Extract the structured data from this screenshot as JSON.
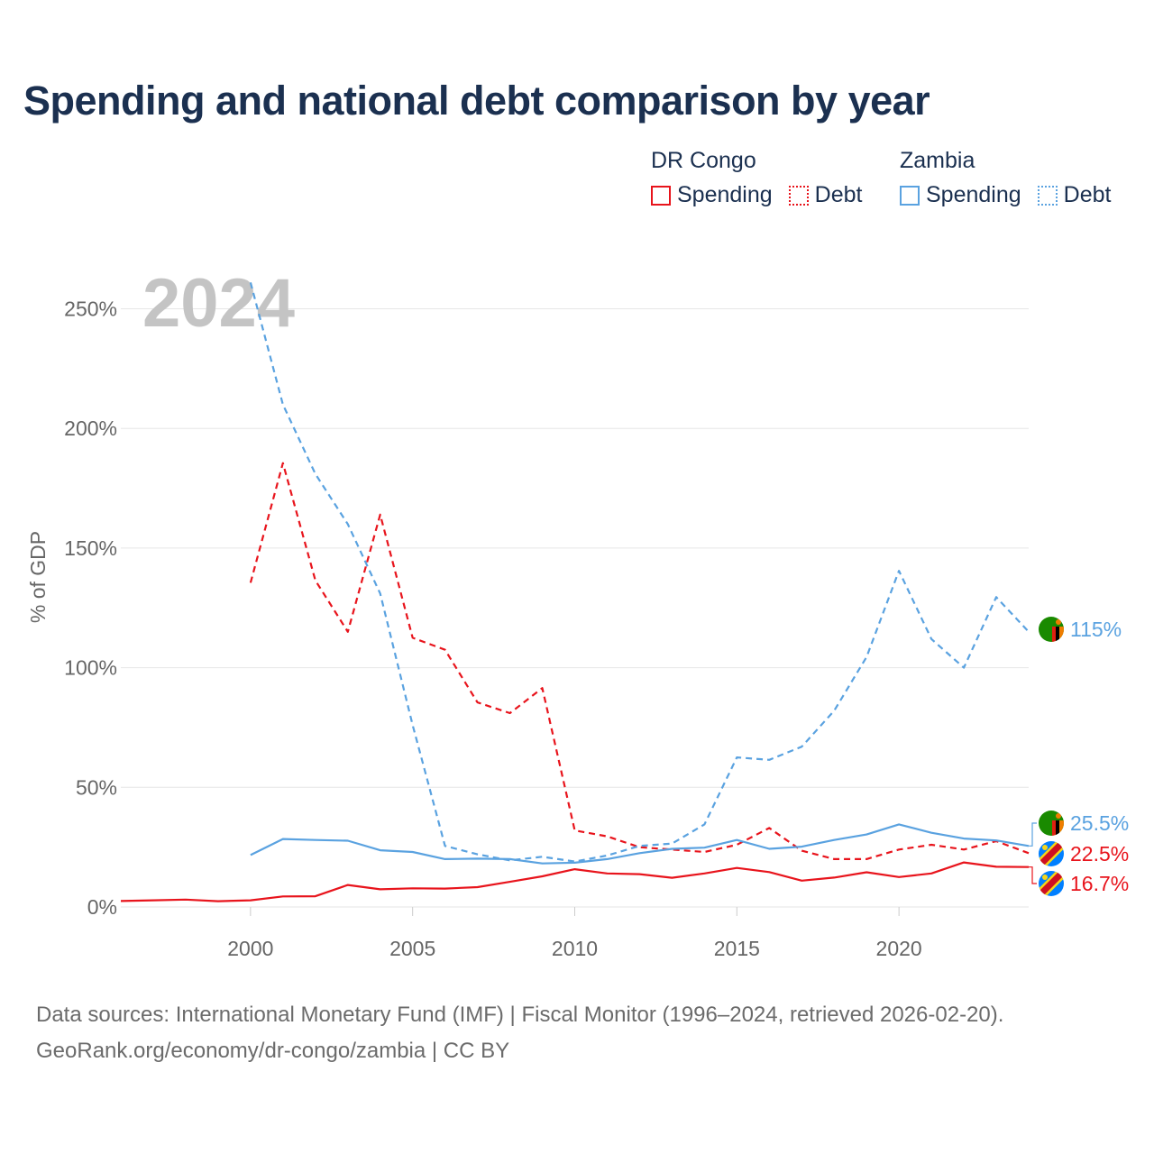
{
  "title": "Spending and national debt comparison by year",
  "legend": {
    "groups": [
      {
        "country": "DR Congo",
        "items": [
          {
            "label": "Spending"
          },
          {
            "label": "Debt"
          }
        ]
      },
      {
        "country": "Zambia",
        "items": [
          {
            "label": "Spending"
          },
          {
            "label": "Debt"
          }
        ]
      }
    ]
  },
  "colors": {
    "congo": "#e8141c",
    "zambia": "#5aa2e0",
    "grid": "#e6e6e6",
    "axis_text": "#666666",
    "year_watermark": "#c4c4c4"
  },
  "year_label": "2024",
  "end_labels": [
    {
      "series": "zambia_debt",
      "text": "115%",
      "flag": "zambia-flag-icon"
    },
    {
      "series": "zambia_spending",
      "text": "25.5%",
      "flag": "zambia-flag-icon"
    },
    {
      "series": "congo_debt",
      "text": "22.5%",
      "flag": "dr-congo-flag-icon"
    },
    {
      "series": "congo_spending",
      "text": "16.7%",
      "flag": "dr-congo-flag-icon"
    }
  ],
  "footer": {
    "line1": "Data sources: International Monetary Fund (IMF) | Fiscal Monitor (1996–2024, retrieved 2026-02-20).",
    "line2": "GeoRank.org/economy/dr-congo/zambia | CC BY"
  },
  "chart_data": {
    "type": "line",
    "title": "Spending and national debt comparison by year",
    "xlabel": "",
    "ylabel": "% of GDP",
    "xlim": [
      1996,
      2024
    ],
    "ylim": [
      0,
      260
    ],
    "x_ticks": [
      2000,
      2005,
      2010,
      2015,
      2020
    ],
    "x_tick_labels": [
      "2000",
      "2005",
      "2010",
      "2015",
      "2020"
    ],
    "y_ticks": [
      0,
      50,
      100,
      150,
      200,
      250
    ],
    "y_tick_labels": [
      "0%",
      "50%",
      "100%",
      "150%",
      "200%",
      "250%"
    ],
    "grid": true,
    "series": [
      {
        "name": "DR Congo Spending",
        "key": "congo_spending",
        "color": "#e8141c",
        "dash": "solid",
        "x": [
          1996,
          1997,
          1998,
          1999,
          2000,
          2001,
          2002,
          2003,
          2004,
          2005,
          2006,
          2007,
          2008,
          2009,
          2010,
          2011,
          2012,
          2013,
          2014,
          2015,
          2016,
          2017,
          2018,
          2019,
          2020,
          2021,
          2022,
          2023,
          2024
        ],
        "values": [
          2.5,
          2.8,
          3.1,
          2.4,
          2.8,
          4.4,
          4.5,
          9.2,
          7.4,
          7.8,
          7.7,
          8.3,
          10.5,
          12.8,
          15.8,
          14.0,
          13.7,
          12.2,
          14.0,
          16.3,
          14.6,
          11.0,
          12.3,
          14.5,
          12.5,
          14.0,
          18.6,
          16.8,
          16.7
        ]
      },
      {
        "name": "DR Congo Debt",
        "key": "congo_debt",
        "color": "#e8141c",
        "dash": "dashed",
        "x": [
          2000,
          2001,
          2002,
          2003,
          2004,
          2005,
          2006,
          2007,
          2008,
          2009,
          2010,
          2011,
          2012,
          2013,
          2014,
          2015,
          2016,
          2017,
          2018,
          2019,
          2020,
          2021,
          2022,
          2023,
          2024
        ],
        "values": [
          135.5,
          185.5,
          136.5,
          115.0,
          164.0,
          112.5,
          107.5,
          85.5,
          81.0,
          91.5,
          32.0,
          29.5,
          25.0,
          24.0,
          23.0,
          26.0,
          33.0,
          23.5,
          20.0,
          20.0,
          24.0,
          26.0,
          24.0,
          27.5,
          22.5
        ]
      },
      {
        "name": "Zambia Spending",
        "key": "zambia_spending",
        "color": "#5aa2e0",
        "dash": "solid",
        "x": [
          2000,
          2001,
          2002,
          2003,
          2004,
          2005,
          2006,
          2007,
          2008,
          2009,
          2010,
          2011,
          2012,
          2013,
          2014,
          2015,
          2016,
          2017,
          2018,
          2019,
          2020,
          2021,
          2022,
          2023,
          2024
        ],
        "values": [
          21.7,
          28.4,
          28.0,
          27.7,
          23.7,
          23.0,
          20.0,
          20.2,
          20.0,
          18.2,
          18.5,
          20.0,
          22.5,
          24.3,
          24.8,
          28.0,
          24.3,
          25.2,
          28.0,
          30.3,
          34.5,
          31.0,
          28.6,
          27.8,
          25.5
        ]
      },
      {
        "name": "Zambia Debt",
        "key": "zambia_debt",
        "color": "#5aa2e0",
        "dash": "dashed",
        "x": [
          2000,
          2001,
          2002,
          2003,
          2004,
          2005,
          2006,
          2007,
          2008,
          2009,
          2010,
          2011,
          2012,
          2013,
          2014,
          2015,
          2016,
          2017,
          2018,
          2019,
          2020,
          2021,
          2022,
          2023,
          2024
        ],
        "values": [
          261.0,
          210.0,
          181.0,
          160.0,
          131.0,
          76.0,
          25.5,
          22.0,
          19.5,
          21.0,
          19.0,
          21.5,
          25.5,
          26.5,
          34.5,
          62.5,
          61.5,
          67.0,
          82.0,
          104.5,
          140.5,
          112.0,
          100.0,
          129.5,
          115.0
        ]
      }
    ]
  }
}
